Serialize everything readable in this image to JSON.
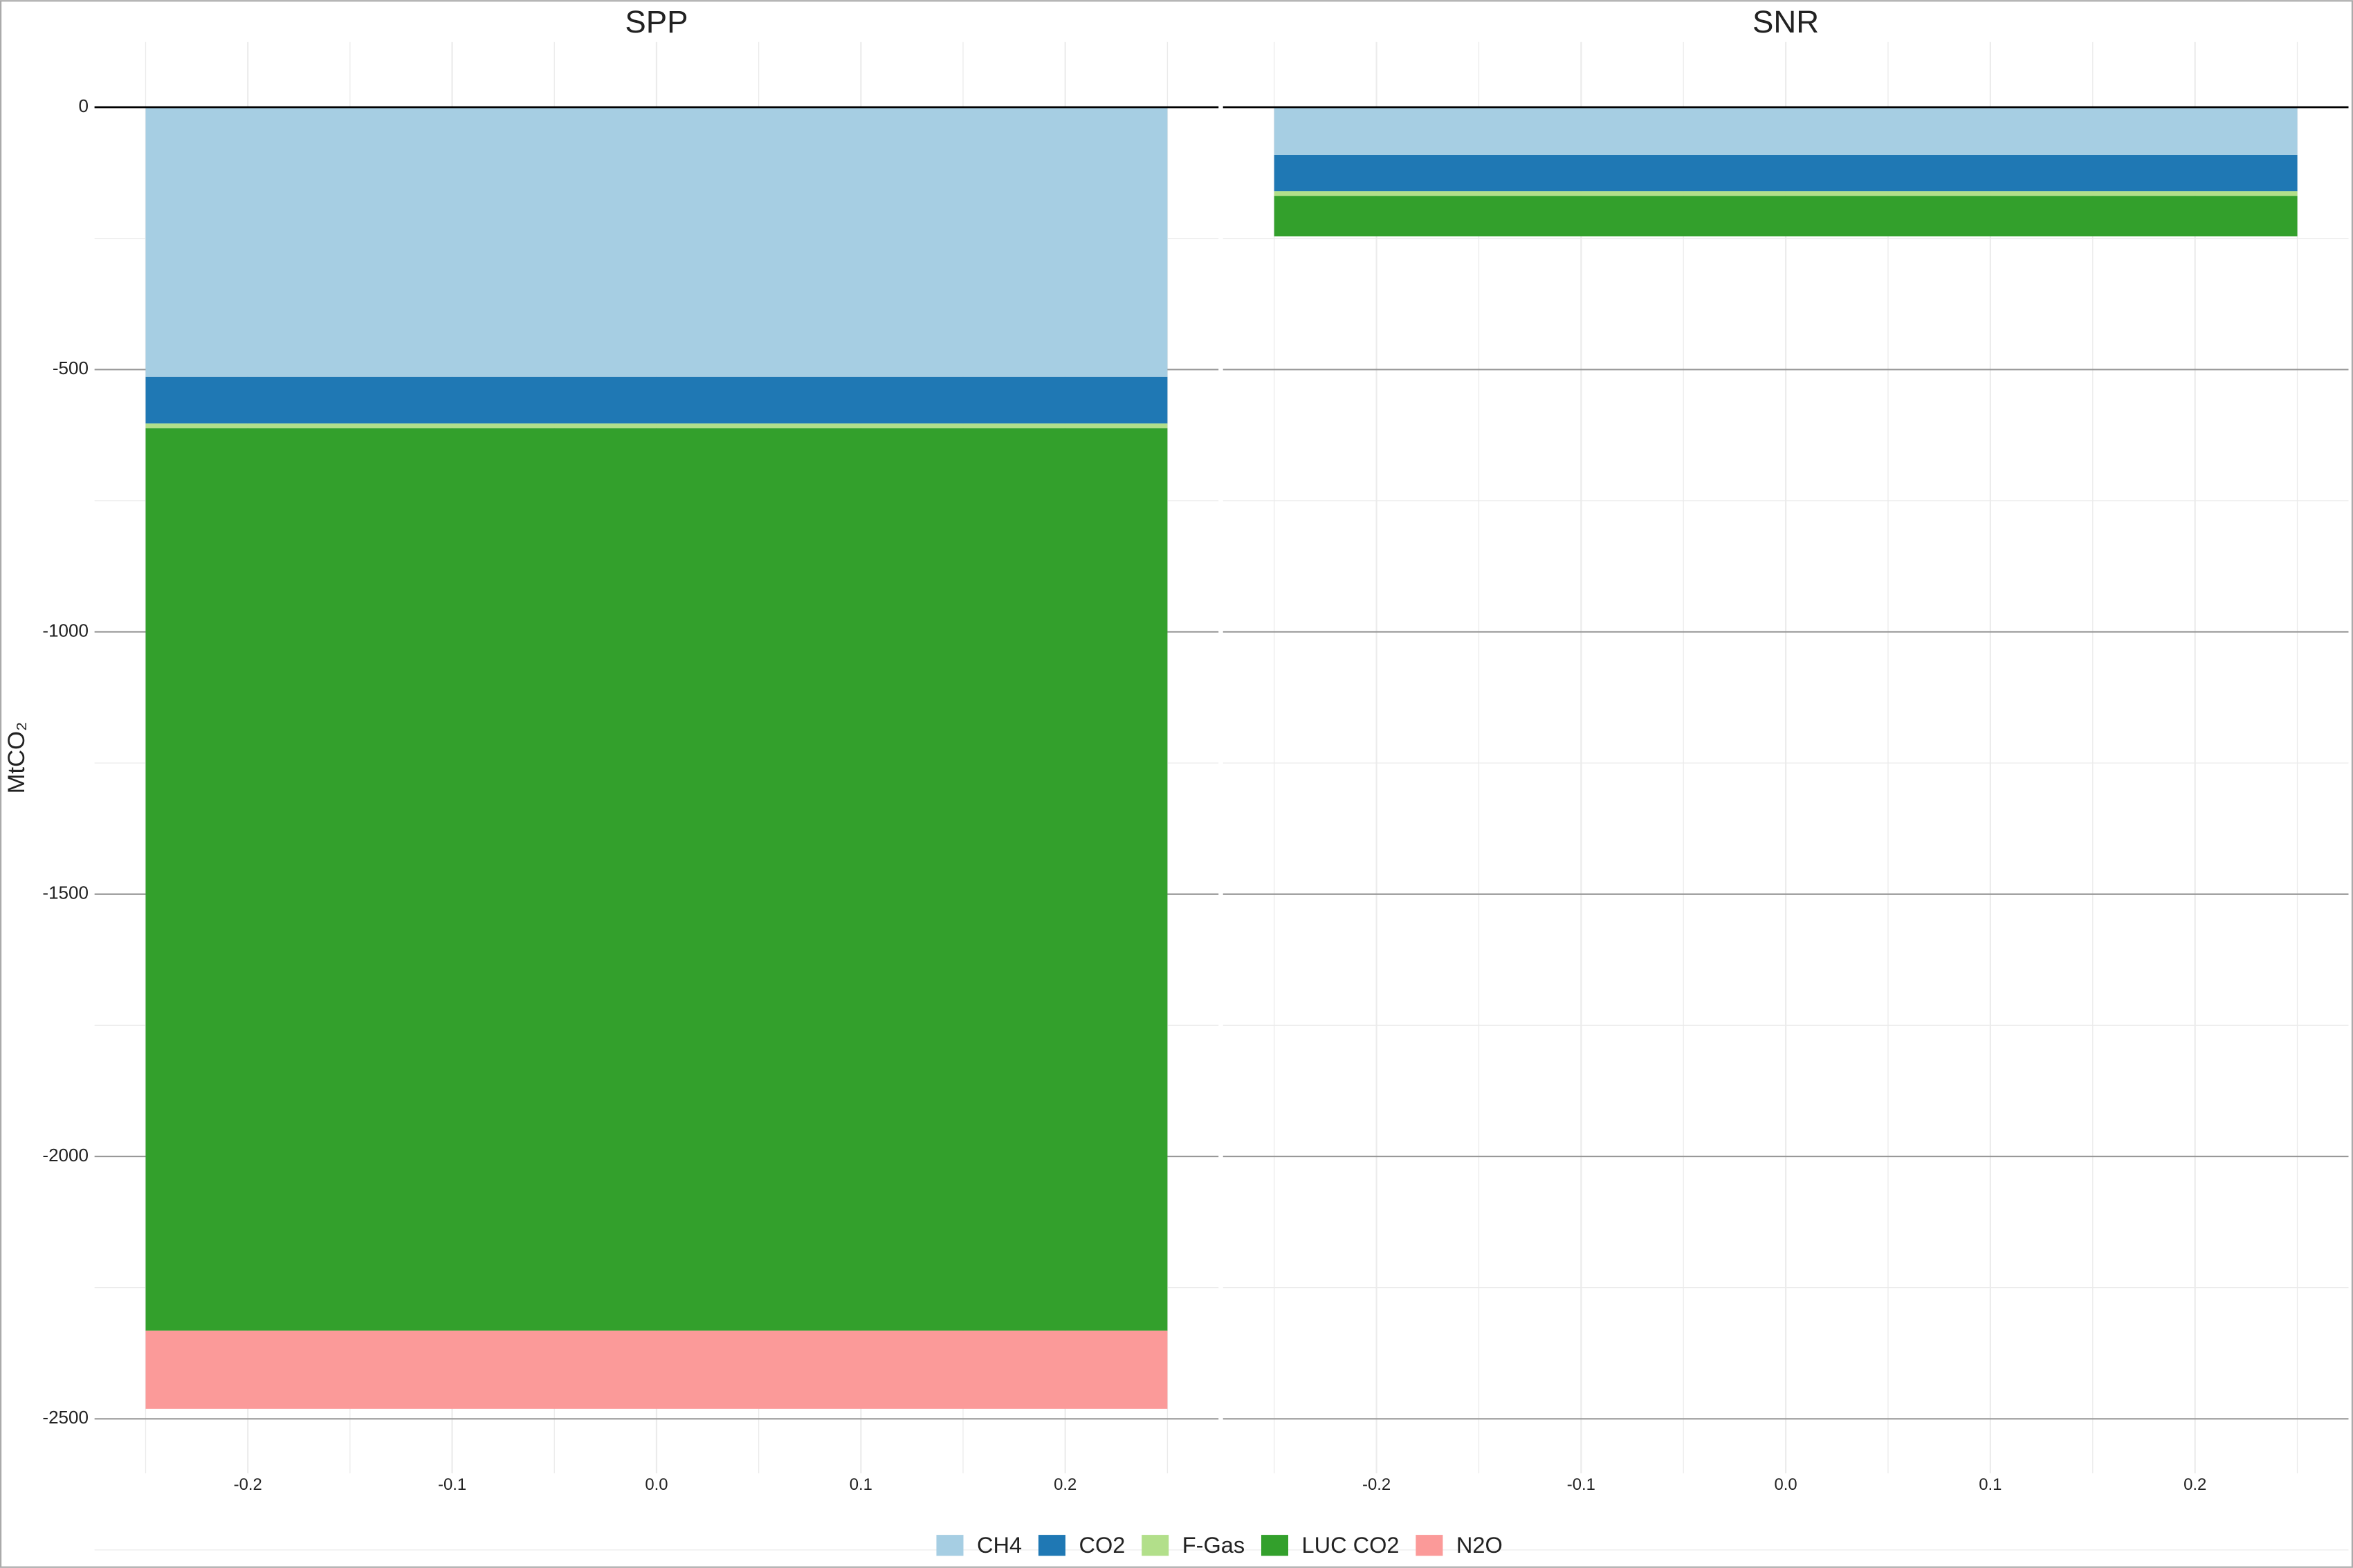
{
  "chart_data": [
    {
      "type": "bar",
      "title": "SPP",
      "ylabel": "MtCO₂",
      "x": [
        0
      ],
      "series": [
        {
          "name": "CH4",
          "color": "#a6cee3",
          "values": [
            -514
          ]
        },
        {
          "name": "CO2",
          "color": "#1f78b4",
          "values": [
            -89
          ]
        },
        {
          "name": "F-Gas",
          "color": "#b2df8a",
          "values": [
            -9
          ]
        },
        {
          "name": "LUC CO2",
          "color": "#33a02c",
          "values": [
            -1720
          ]
        },
        {
          "name": "N2O",
          "color": "#fb9a99",
          "values": [
            -149
          ]
        }
      ],
      "xlim": [
        -0.275,
        0.275
      ],
      "xticks": [
        -0.2,
        -0.1,
        {
          "value": 0,
          "label": "0.0"
        },
        0.1,
        0.2
      ],
      "ylim": [
        -2604,
        124
      ],
      "yticks": [
        0,
        -500,
        -1000,
        -1500,
        -2000,
        -2500
      ]
    },
    {
      "type": "bar",
      "title": "SNR",
      "x": [
        0
      ],
      "series": [
        {
          "name": "CH4",
          "color": "#a6cee3",
          "values": [
            -91
          ]
        },
        {
          "name": "CO2",
          "color": "#1f78b4",
          "values": [
            -69
          ]
        },
        {
          "name": "F-Gas",
          "color": "#b2df8a",
          "values": [
            -9
          ]
        },
        {
          "name": "LUC CO2",
          "color": "#33a02c",
          "values": [
            -77
          ]
        },
        {
          "name": "N2O",
          "color": "#fb9a99",
          "values": [
            0
          ]
        }
      ],
      "xlim": [
        -0.275,
        0.275
      ],
      "xticks": [
        -0.2,
        -0.1,
        {
          "value": 0,
          "label": "0.0"
        },
        0.1,
        0.2
      ],
      "ylim": [
        -2604,
        124
      ],
      "yticks": [
        0,
        -500,
        -1000,
        -1500,
        -2000,
        -2500
      ]
    }
  ]
}
